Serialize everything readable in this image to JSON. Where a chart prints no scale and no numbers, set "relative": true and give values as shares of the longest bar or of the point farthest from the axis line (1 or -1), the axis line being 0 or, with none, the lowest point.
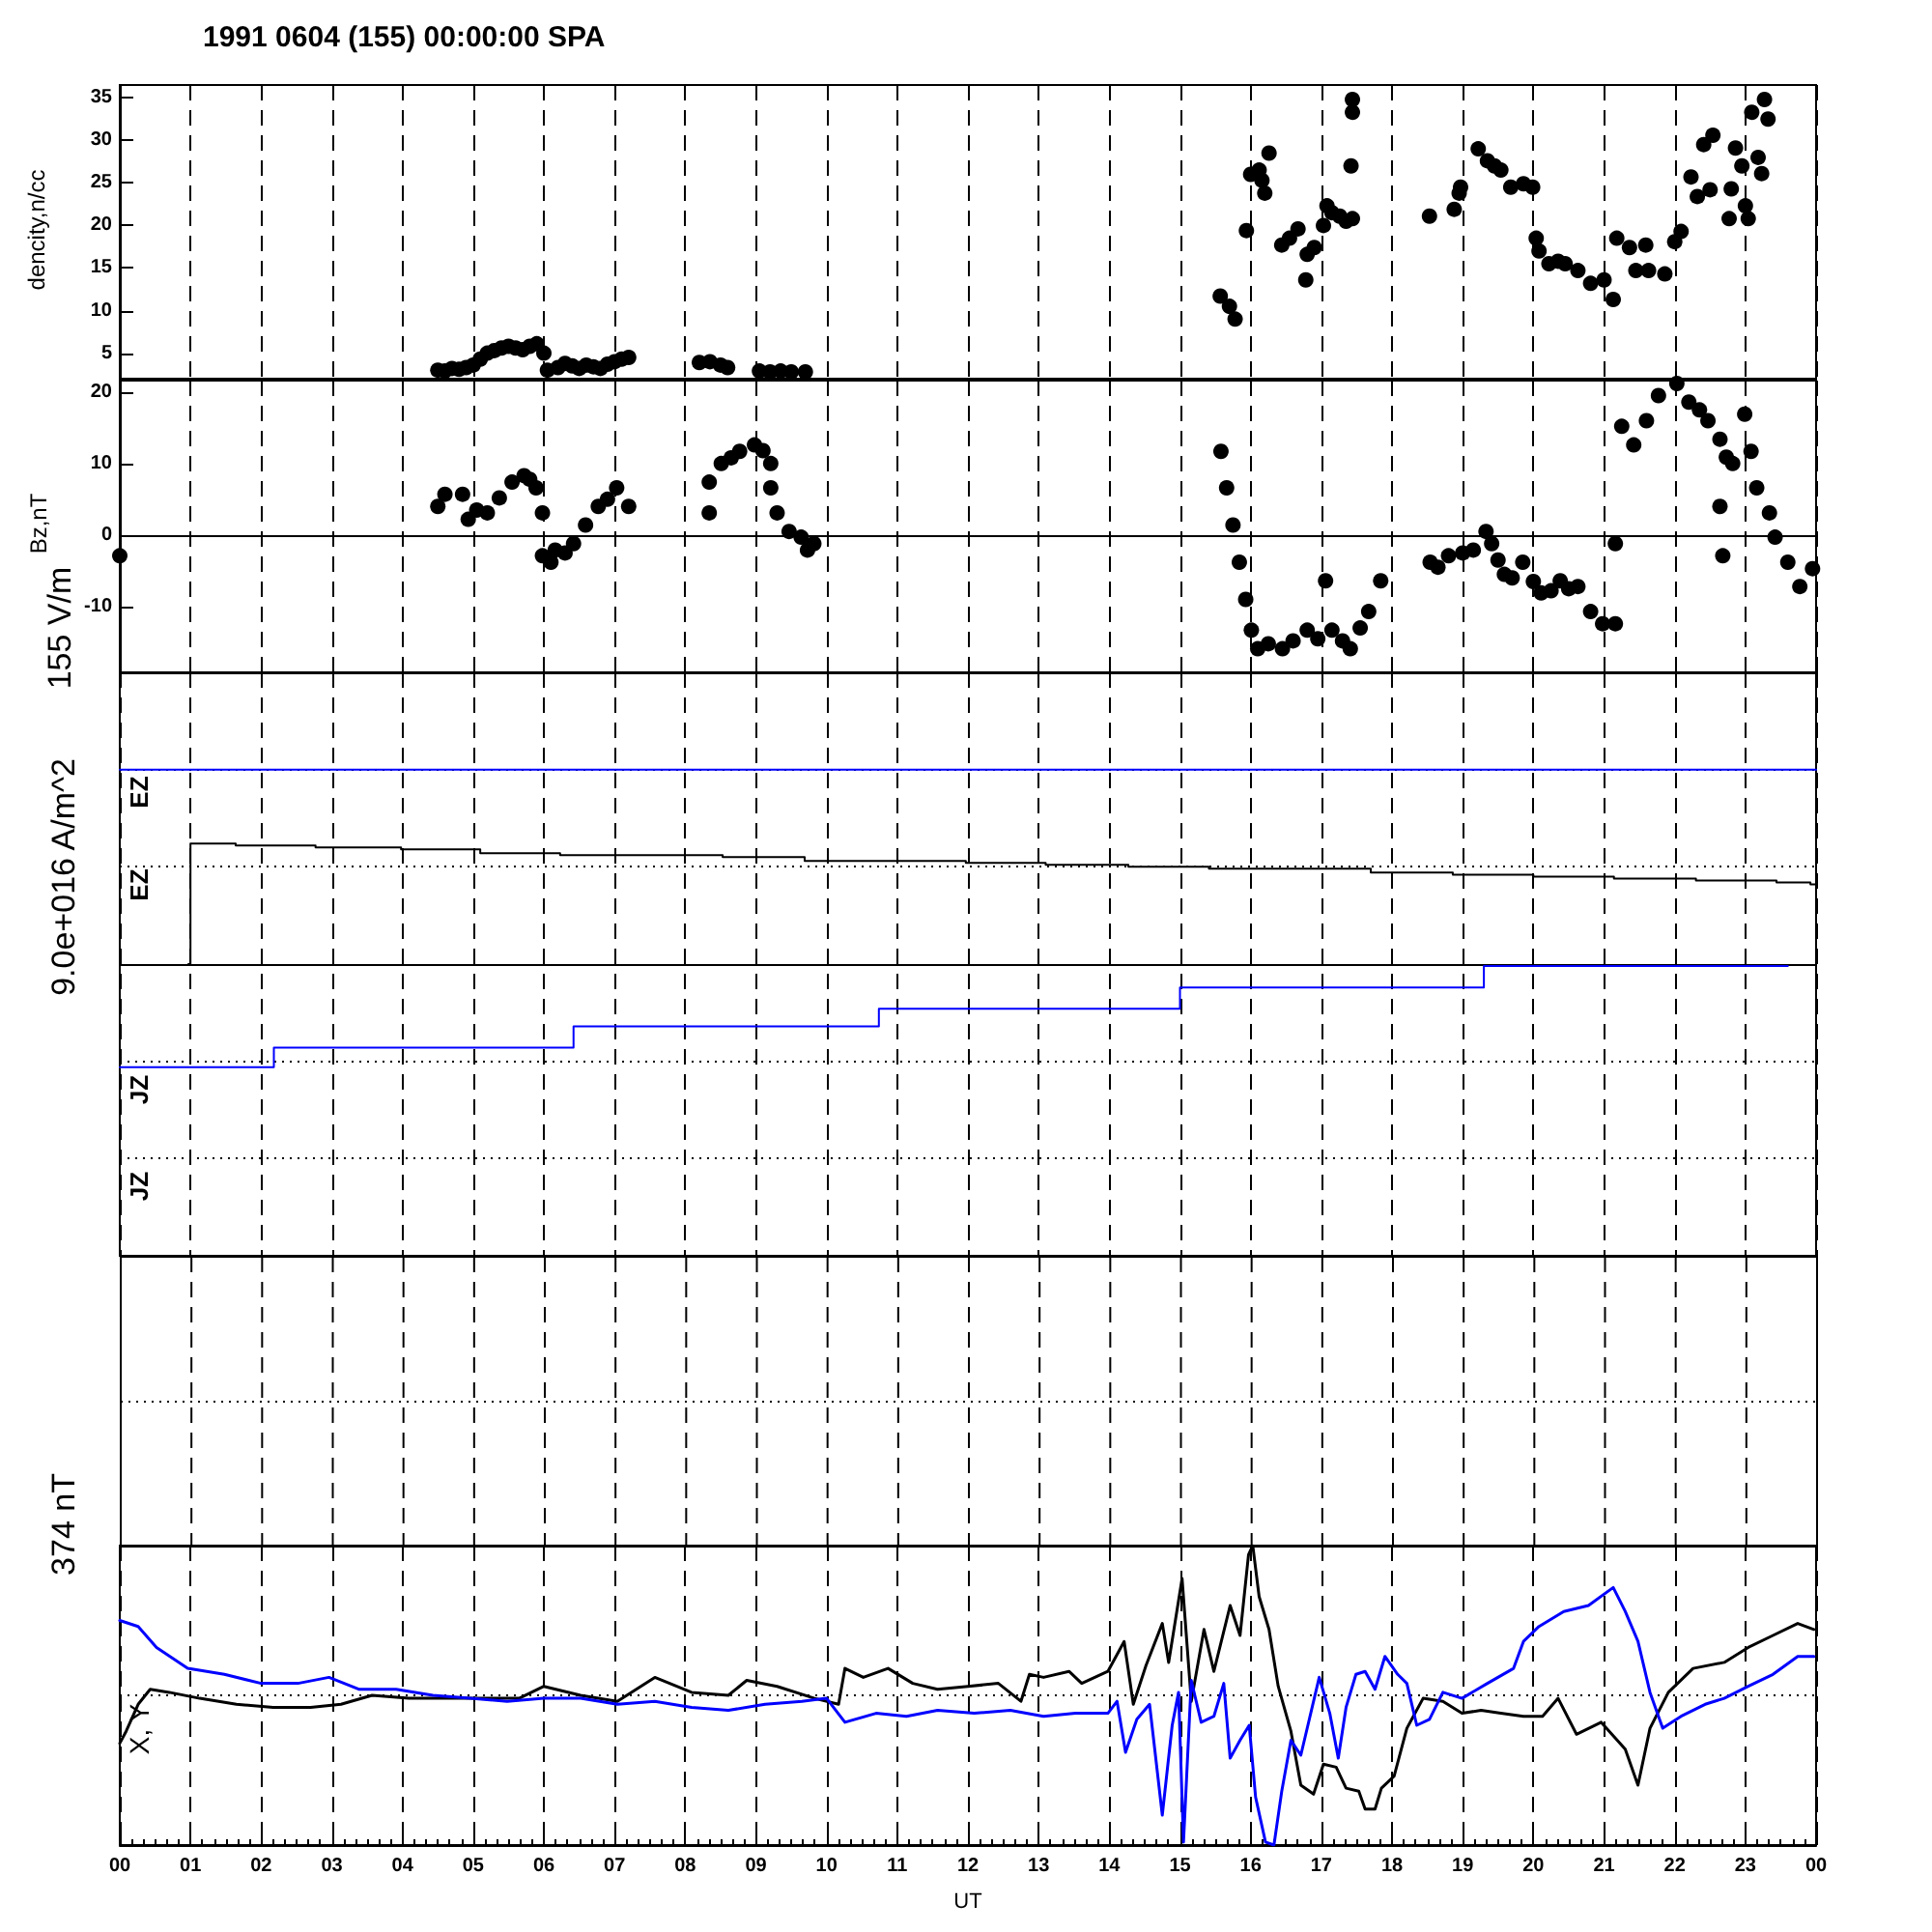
{
  "chart_data": [
    {
      "type": "scatter",
      "title": "1991 0604 (155) 00:00:00 SPA",
      "ylabel": "dencity,n/cc",
      "color": "#000000",
      "marker": "circle",
      "x": [
        4.5,
        4.6,
        4.7,
        4.8,
        4.9,
        5.0,
        5.1,
        5.2,
        5.3,
        5.4,
        5.5,
        5.6,
        5.7,
        5.8,
        5.9,
        6.0,
        6.05,
        6.2,
        6.3,
        6.4,
        6.5,
        6.6,
        6.7,
        6.8,
        6.9,
        7.0,
        7.1,
        7.2,
        8.2,
        8.35,
        8.5,
        8.6,
        9.05,
        9.2,
        9.35,
        9.5,
        9.7,
        15.57,
        15.7,
        15.78,
        15.94,
        16.0,
        16.12,
        16.16,
        16.2,
        16.26,
        16.44,
        16.55,
        16.67,
        16.8,
        16.78,
        16.9,
        17.03,
        17.08,
        17.15,
        17.26,
        17.35,
        17.44,
        17.44,
        17.44,
        17.42,
        18.53,
        18.88,
        18.95,
        18.97,
        19.22,
        19.35,
        19.45,
        19.54,
        19.68,
        19.86,
        19.99,
        20.04,
        20.08,
        20.22,
        20.35,
        20.45,
        20.63,
        20.81,
        21.0,
        21.13,
        21.18,
        21.36,
        21.45,
        21.59,
        21.63,
        21.86,
        22.0,
        22.09,
        22.23,
        22.32,
        22.41,
        22.5,
        22.54,
        22.77,
        22.8,
        22.86,
        22.95,
        23.0,
        23.04,
        23.09,
        23.18,
        23.23,
        23.27,
        23.32
      ],
      "values": [
        3.0,
        2.9,
        3.2,
        3.1,
        3.3,
        3.6,
        4.3,
        5.0,
        5.3,
        5.6,
        5.8,
        5.6,
        5.4,
        5.8,
        6.1,
        5.0,
        3.0,
        3.3,
        3.8,
        3.5,
        3.2,
        3.6,
        3.4,
        3.2,
        3.7,
        4.0,
        4.3,
        4.5,
        3.9,
        4.0,
        3.6,
        3.3,
        2.9,
        2.8,
        2.9,
        2.8,
        2.8,
        11.7,
        10.5,
        9.0,
        19.4,
        26.0,
        26.5,
        25.3,
        23.8,
        28.5,
        17.7,
        18.5,
        19.6,
        16.6,
        13.6,
        17.4,
        20.0,
        22.3,
        21.5,
        21.1,
        20.5,
        20.8,
        34.8,
        33.3,
        27.0,
        21.1,
        21.9,
        23.8,
        24.5,
        29.0,
        27.6,
        27.0,
        26.5,
        24.5,
        24.9,
        24.5,
        18.5,
        17.0,
        15.5,
        15.8,
        15.5,
        14.7,
        13.2,
        13.6,
        11.3,
        18.5,
        17.4,
        14.7,
        17.7,
        14.7,
        14.3,
        18.1,
        19.3,
        25.7,
        23.4,
        29.5,
        24.2,
        30.6,
        20.8,
        24.3,
        29.1,
        27.0,
        22.3,
        20.8,
        33.3,
        28.0,
        26.1,
        34.8,
        32.5
      ],
      "xlim": [
        0,
        24
      ],
      "xticks": [
        0,
        1,
        2,
        3,
        4,
        5,
        6,
        7,
        8,
        9,
        10,
        11,
        12,
        13,
        14,
        15,
        16,
        17,
        18,
        19,
        20,
        21,
        22,
        23,
        24
      ],
      "ylim": [
        2,
        36.5
      ],
      "yticks": [
        5,
        10,
        15,
        20,
        25,
        30,
        35
      ],
      "grid": "x",
      "tick_labels": "y"
    },
    {
      "type": "scatter",
      "ylabel": "Bz,nT",
      "color": "#000000",
      "marker": "circle",
      "x": [
        0.0,
        4.5,
        4.6,
        4.85,
        4.93,
        5.05,
        5.2,
        5.37,
        5.55,
        5.72,
        5.8,
        5.89,
        5.98,
        5.98,
        6.1,
        6.16,
        6.3,
        6.42,
        6.59,
        6.77,
        6.9,
        7.03,
        7.2,
        8.34,
        8.34,
        8.51,
        8.65,
        8.77,
        8.98,
        9.1,
        9.21,
        9.21,
        9.3,
        9.47,
        9.64,
        9.73,
        9.82,
        15.58,
        15.66,
        15.75,
        15.84,
        15.93,
        16.01,
        16.1,
        16.25,
        16.45,
        16.6,
        16.8,
        16.95,
        17.06,
        17.15,
        17.3,
        17.41,
        17.55,
        17.67,
        17.84,
        18.54,
        18.65,
        18.8,
        19.0,
        19.15,
        19.33,
        19.41,
        19.5,
        19.59,
        19.7,
        19.85,
        20.0,
        20.11,
        20.25,
        20.38,
        20.5,
        20.63,
        20.81,
        20.98,
        21.16,
        21.16,
        21.25,
        21.42,
        21.6,
        21.77,
        22.03,
        22.2,
        22.35,
        22.47,
        22.64,
        22.64,
        22.68,
        22.73,
        22.82,
        22.99,
        23.08,
        23.16,
        23.34,
        23.42,
        23.6,
        23.77,
        23.95
      ],
      "values": [
        -2.9,
        4.0,
        5.7,
        5.7,
        2.2,
        3.5,
        3.1,
        5.2,
        7.4,
        8.3,
        7.8,
        6.6,
        3.1,
        -2.9,
        -3.8,
        -2.1,
        -2.5,
        -1.2,
        1.4,
        4.0,
        5.0,
        6.6,
        4.0,
        3.1,
        7.4,
        10.0,
        10.8,
        11.7,
        12.6,
        11.8,
        10.0,
        6.6,
        3.1,
        0.5,
        -0.3,
        -2.1,
        -1.2,
        11.7,
        6.6,
        1.4,
        -3.8,
        -9.0,
        -13.3,
        -15.9,
        -15.2,
        -15.9,
        -14.8,
        -13.3,
        -14.5,
        -6.4,
        -13.3,
        -14.8,
        -15.9,
        -13.0,
        -10.7,
        -6.4,
        -3.8,
        -4.5,
        -2.9,
        -2.5,
        -2.1,
        0.5,
        -1.2,
        -3.5,
        -5.5,
        -6.0,
        -3.8,
        -6.5,
        -8.1,
        -7.8,
        -6.4,
        -7.5,
        -7.2,
        -10.7,
        -12.4,
        -12.4,
        -1.2,
        15.2,
        12.6,
        16.0,
        19.5,
        21.2,
        18.6,
        17.5,
        16.0,
        13.4,
        4.0,
        -2.9,
        10.9,
        10.0,
        16.9,
        11.7,
        6.6,
        3.1,
        -0.3,
        -3.8,
        -7.2,
        -4.7
      ],
      "xlim": [
        0,
        24
      ],
      "xticks": [
        0,
        1,
        2,
        3,
        4,
        5,
        6,
        7,
        8,
        9,
        10,
        11,
        12,
        13,
        14,
        15,
        16,
        17,
        18,
        19,
        20,
        21,
        22,
        23,
        24
      ],
      "ylim": [
        -19.2,
        21.6
      ],
      "yticks": [
        -10,
        0,
        10,
        20
      ],
      "ref_lines": [
        {
          "axis": "y",
          "value": 0,
          "color": "#000000",
          "line_style": "solid"
        }
      ],
      "grid": "x",
      "tick_labels": "y"
    },
    {
      "type": "step",
      "relative": true,
      "ylabel": "9.0e+016 A/m^2",
      "annotations": [
        "155 V/m",
        "JZ"
      ],
      "series": [
        {
          "name": "EZ",
          "color": "#000000",
          "x": [
            0.97,
            1.0,
            1.64,
            2.77,
            3.98,
            5.1,
            6.23,
            7.39,
            8.53,
            9.69,
            10.85,
            11.97,
            13.1,
            14.27,
            15.41,
            16.57,
            17.7,
            18.86,
            20.0,
            21.14,
            22.3,
            23.44,
            23.92,
            24
          ],
          "values": [
            0,
            0.62,
            0.61,
            0.6,
            0.59,
            0.57,
            0.56,
            0.56,
            0.55,
            0.53,
            0.53,
            0.52,
            0.51,
            0.5,
            0.49,
            0.49,
            0.47,
            0.46,
            0.45,
            0.44,
            0.43,
            0.42,
            0.41,
            0
          ]
        },
        {
          "name": "EZ",
          "color": "#0000ff",
          "x": [
            0,
            24
          ],
          "values": [
            1,
            1
          ]
        },
        {
          "name": "JZ",
          "color": "#0000ff",
          "x": [
            0,
            2.18,
            6.42,
            10.74,
            15.0,
            19.3,
            23.6
          ],
          "values": [
            -0.53,
            -0.43,
            -0.32,
            -0.23,
            -0.12,
            -0.01,
            -0.01
          ]
        }
      ],
      "xlim": [
        0,
        24
      ],
      "xticks": [
        0,
        1,
        2,
        3,
        4,
        5,
        6,
        7,
        8,
        9,
        10,
        11,
        12,
        13,
        14,
        15,
        16,
        17,
        18,
        19,
        20,
        21,
        22,
        23,
        24
      ],
      "grid": true,
      "tick_labels": false
    },
    {
      "type": "line",
      "relative": true,
      "ylabel": "374 nT",
      "xlabel": "UT",
      "annotations": [
        "X, Y"
      ],
      "series": [
        {
          "color": "#000000",
          "x": [
            0,
            0.09,
            0.26,
            0.43,
            0.7,
            1.13,
            1.65,
            2.17,
            2.7,
            3.13,
            3.57,
            4.09,
            4.61,
            5.13,
            5.65,
            6.0,
            6.52,
            7.04,
            7.57,
            8.09,
            8.61,
            8.87,
            9.3,
            9.83,
            10.17,
            10.26,
            10.52,
            10.87,
            11.22,
            11.57,
            12.0,
            12.43,
            12.75,
            12.87,
            13.07,
            13.43,
            13.61,
            13.98,
            14.21,
            14.34,
            14.52,
            14.75,
            14.84,
            15.03,
            15.16,
            15.34,
            15.48,
            15.71,
            15.85,
            15.97,
            16.03,
            16.12,
            16.26,
            16.39,
            16.57,
            16.71,
            16.89,
            17.03,
            17.21,
            17.35,
            17.53,
            17.62,
            17.76,
            17.85,
            18.03,
            18.21,
            18.44,
            18.72,
            18.99,
            19.26,
            19.54,
            19.86,
            20.13,
            20.35,
            20.61,
            20.96,
            21.3,
            21.48,
            21.65,
            21.91,
            22.26,
            22.7,
            23.04,
            23.39,
            23.74,
            23.97
          ],
          "values": [
            0.34,
            0.38,
            0.47,
            0.52,
            0.51,
            0.49,
            0.47,
            0.46,
            0.46,
            0.47,
            0.5,
            0.49,
            0.49,
            0.49,
            0.49,
            0.53,
            0.5,
            0.48,
            0.56,
            0.51,
            0.5,
            0.55,
            0.53,
            0.49,
            0.47,
            0.59,
            0.56,
            0.59,
            0.54,
            0.52,
            0.53,
            0.54,
            0.48,
            0.57,
            0.56,
            0.58,
            0.54,
            0.58,
            0.68,
            0.47,
            0.6,
            0.74,
            0.61,
            0.89,
            0.48,
            0.72,
            0.58,
            0.8,
            0.7,
            0.97,
            1.0,
            0.83,
            0.72,
            0.53,
            0.38,
            0.2,
            0.17,
            0.27,
            0.26,
            0.19,
            0.18,
            0.12,
            0.12,
            0.19,
            0.23,
            0.39,
            0.49,
            0.48,
            0.44,
            0.45,
            0.44,
            0.43,
            0.43,
            0.49,
            0.37,
            0.41,
            0.32,
            0.2,
            0.39,
            0.51,
            0.59,
            0.61,
            0.66,
            0.7,
            0.74,
            0.72
          ]
        },
        {
          "color": "#0000ff",
          "x": [
            0,
            0.26,
            0.52,
            0.96,
            1.48,
            2.0,
            2.52,
            2.96,
            3.39,
            3.91,
            4.43,
            4.96,
            5.48,
            6.0,
            6.52,
            7.04,
            7.57,
            8.09,
            8.61,
            9.13,
            9.65,
            10.0,
            10.26,
            10.7,
            11.13,
            11.57,
            12.09,
            12.6,
            13.07,
            13.52,
            13.98,
            14.11,
            14.23,
            14.39,
            14.57,
            14.75,
            14.89,
            14.98,
            15.05,
            15.16,
            15.3,
            15.48,
            15.62,
            15.71,
            15.85,
            15.98,
            16.07,
            16.21,
            16.33,
            16.44,
            16.57,
            16.71,
            16.85,
            16.97,
            17.12,
            17.24,
            17.35,
            17.49,
            17.62,
            17.76,
            17.9,
            18.08,
            18.21,
            18.35,
            18.53,
            18.72,
            18.99,
            19.35,
            19.72,
            19.86,
            20.08,
            20.43,
            20.78,
            21.13,
            21.3,
            21.48,
            21.65,
            21.83,
            22.09,
            22.43,
            22.7,
            23.04,
            23.39,
            23.74,
            23.97
          ],
          "values": [
            0.75,
            0.73,
            0.66,
            0.59,
            0.57,
            0.54,
            0.54,
            0.56,
            0.52,
            0.52,
            0.5,
            0.49,
            0.48,
            0.49,
            0.49,
            0.47,
            0.48,
            0.46,
            0.45,
            0.47,
            0.48,
            0.49,
            0.41,
            0.44,
            0.43,
            0.45,
            0.44,
            0.45,
            0.43,
            0.44,
            0.44,
            0.48,
            0.31,
            0.42,
            0.47,
            0.1,
            0.4,
            0.51,
            0.01,
            0.55,
            0.41,
            0.43,
            0.54,
            0.29,
            0.35,
            0.4,
            0.16,
            0.01,
            0,
            0.18,
            0.35,
            0.3,
            0.44,
            0.56,
            0.44,
            0.29,
            0.46,
            0.57,
            0.58,
            0.52,
            0.63,
            0.57,
            0.54,
            0.4,
            0.42,
            0.51,
            0.49,
            0.54,
            0.59,
            0.68,
            0.73,
            0.78,
            0.8,
            0.86,
            0.78,
            0.68,
            0.51,
            0.39,
            0.43,
            0.47,
            0.49,
            0.53,
            0.57,
            0.63,
            0.63
          ]
        }
      ],
      "xlim": [
        0,
        24
      ],
      "xticks": [
        {
          "value": 0,
          "label": "00"
        },
        {
          "value": 1,
          "label": "01"
        },
        {
          "value": 2,
          "label": "02"
        },
        {
          "value": 3,
          "label": "03"
        },
        {
          "value": 4,
          "label": "04"
        },
        {
          "value": 5,
          "label": "05"
        },
        {
          "value": 6,
          "label": "06"
        },
        {
          "value": 7,
          "label": "07"
        },
        {
          "value": 8,
          "label": "08"
        },
        {
          "value": 9,
          "label": "09"
        },
        {
          "value": 10,
          "label": "10"
        },
        {
          "value": 11,
          "label": "11"
        },
        {
          "value": 12,
          "label": "12"
        },
        {
          "value": 13,
          "label": "13"
        },
        {
          "value": 14,
          "label": "14"
        },
        {
          "value": 15,
          "label": "15"
        },
        {
          "value": 16,
          "label": "16"
        },
        {
          "value": 17,
          "label": "17"
        },
        {
          "value": 18,
          "label": "18"
        },
        {
          "value": 19,
          "label": "19"
        },
        {
          "value": 20,
          "label": "20"
        },
        {
          "value": 21,
          "label": "21"
        },
        {
          "value": 22,
          "label": "22"
        },
        {
          "value": 23,
          "label": "23"
        },
        {
          "value": 24,
          "label": "00"
        }
      ],
      "grid": true,
      "tick_labels": "x"
    }
  ]
}
